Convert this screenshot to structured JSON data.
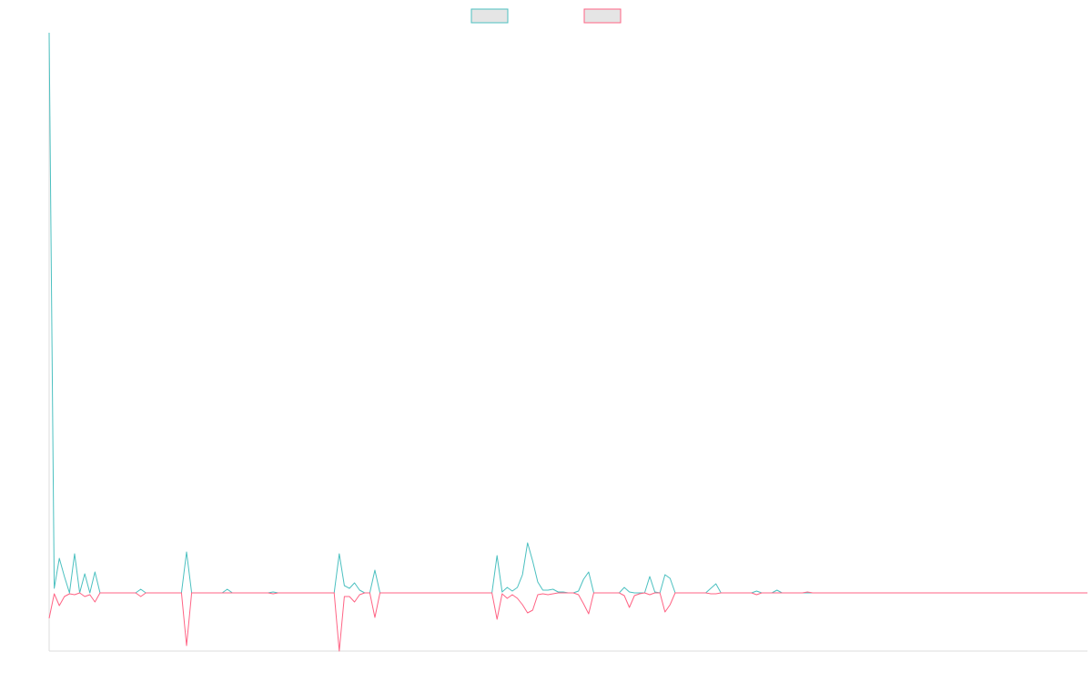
{
  "chart_data": {
    "type": "line",
    "categories": [
      null,
      null,
      null,
      null,
      null,
      null,
      null,
      null,
      null,
      null,
      null,
      null,
      null,
      null,
      null,
      null,
      null,
      null,
      null,
      null,
      null,
      null,
      null,
      null,
      null,
      null,
      null,
      null,
      null,
      null,
      null,
      null,
      null,
      null,
      null,
      null,
      null,
      null,
      null,
      null,
      null,
      null,
      null,
      null,
      null,
      null,
      null,
      null,
      null,
      null,
      null,
      null,
      null,
      null,
      null,
      null,
      null,
      null,
      null,
      null,
      null,
      null,
      null,
      null,
      null,
      null,
      null,
      null,
      null,
      null,
      null,
      null,
      null,
      null,
      null,
      null,
      null,
      null,
      null,
      null,
      null,
      null,
      null,
      null,
      null,
      null,
      null,
      null,
      null,
      null,
      null,
      null,
      null,
      null,
      null,
      null,
      null,
      null,
      null,
      null,
      null,
      null,
      null,
      null,
      null,
      null,
      null,
      null,
      null,
      null,
      null,
      null,
      null,
      null,
      null,
      null,
      null,
      null,
      null,
      null,
      null,
      null,
      null,
      null,
      null,
      null,
      null,
      null,
      null,
      null,
      null,
      null,
      null,
      null,
      null,
      null,
      null,
      null,
      null,
      null,
      null,
      null,
      null,
      null,
      null,
      null,
      null,
      null,
      null,
      null,
      null,
      null,
      null,
      null,
      null,
      null,
      null,
      null,
      null,
      null,
      null,
      null,
      null,
      null,
      null,
      null,
      null,
      null,
      null,
      null,
      null,
      null,
      null,
      null,
      null,
      null,
      null,
      null,
      null,
      null,
      null,
      null,
      null,
      null,
      null,
      null,
      null,
      null,
      null,
      null,
      null,
      null,
      null,
      null,
      null,
      null,
      null,
      null,
      null,
      null,
      null,
      null,
      null,
      null,
      null
    ],
    "series": [
      {
        "color": "#4bc0c0",
        "values": [
          61.6,
          0.5,
          3.8,
          1.8,
          0,
          4.3,
          0,
          2.1,
          0,
          2.3,
          0,
          0,
          0,
          0,
          0,
          0,
          0,
          0,
          0.4,
          0,
          0,
          0,
          0,
          0,
          0,
          0,
          0,
          4.5,
          0,
          0,
          0,
          0,
          0,
          0,
          0,
          0.4,
          0,
          0,
          0,
          0,
          0,
          0,
          0,
          0,
          0.1,
          0,
          0,
          0,
          0,
          0,
          0,
          0,
          0,
          0,
          0,
          0,
          0,
          4.3,
          0.8,
          0.5,
          1.1,
          0.3,
          0,
          0,
          2.5,
          0,
          0,
          0,
          0,
          0,
          0,
          0,
          0,
          0,
          0,
          0,
          0,
          0,
          0,
          0,
          0,
          0,
          0,
          0,
          0,
          0,
          0,
          0,
          4.1,
          0.1,
          0.6,
          0.2,
          0.6,
          2.0,
          5.5,
          3.5,
          1.2,
          0.3,
          0.3,
          0.4,
          0.1,
          0.1,
          0,
          0,
          0.2,
          1.5,
          2.3,
          0,
          0,
          0,
          0,
          0,
          0,
          0.6,
          0.1,
          0,
          0,
          0,
          1.8,
          0.1,
          0,
          2.0,
          1.6,
          0,
          0,
          0,
          0,
          0,
          0,
          0,
          0.5,
          1.0,
          0,
          0,
          0,
          0,
          0,
          0,
          0,
          0.2,
          0,
          0,
          0,
          0.3,
          0,
          0,
          0,
          0,
          0,
          0,
          0,
          0,
          0,
          0,
          0,
          0,
          0,
          0,
          0,
          0,
          0,
          0,
          0,
          0,
          0,
          0,
          0,
          0,
          0,
          0,
          0,
          0,
          0,
          0,
          0,
          0,
          0,
          0,
          0,
          0,
          0,
          0,
          0,
          0,
          0,
          0,
          0,
          0,
          0,
          0,
          0,
          0,
          0,
          0,
          0,
          0,
          0,
          0,
          0,
          0,
          0,
          0,
          0,
          0,
          0
        ]
      },
      {
        "color": "#ff6384",
        "values": [
          -2.8,
          -0.1,
          -1.4,
          -0.4,
          -0.1,
          -0.2,
          0,
          -0.4,
          -0.2,
          -1.0,
          0,
          0,
          0,
          0,
          0,
          0,
          0,
          0,
          -0.4,
          0,
          0,
          0,
          0,
          0,
          0,
          0,
          0,
          -5.8,
          0,
          0,
          0,
          0,
          0,
          0,
          0,
          0,
          0,
          0,
          0,
          0,
          0,
          0,
          0,
          0,
          -0.1,
          0,
          0,
          0,
          0,
          0,
          0,
          0,
          0,
          0,
          0,
          0,
          0,
          -6.4,
          -0.4,
          -0.4,
          -1.0,
          -0.2,
          0,
          0,
          -2.7,
          0,
          0,
          0,
          0,
          0,
          0,
          0,
          0,
          0,
          0,
          0,
          0,
          0,
          0,
          0,
          0,
          0,
          0,
          0,
          0,
          0,
          0,
          0,
          -2.9,
          -0.1,
          -0.6,
          -0.2,
          -0.6,
          -1.3,
          -2.2,
          -1.9,
          -0.2,
          -0.1,
          -0.2,
          -0.1,
          0,
          0,
          0,
          0,
          -0.2,
          -1.2,
          -2.3,
          0,
          0,
          0,
          0,
          0,
          0,
          -0.3,
          -1.6,
          -0.3,
          -0.1,
          0,
          -0.2,
          0,
          0,
          -2.1,
          -1.3,
          0,
          0,
          0,
          0,
          0,
          0,
          0,
          -0.1,
          -0.1,
          0,
          0,
          0,
          0,
          0,
          0,
          0,
          -0.2,
          0,
          0,
          0,
          0,
          0,
          0,
          0,
          0,
          0,
          0.1,
          0,
          0,
          0,
          0,
          0,
          0,
          0,
          0,
          0,
          0,
          0,
          0,
          0,
          0,
          0,
          0,
          0,
          0,
          0,
          0,
          0,
          0,
          0,
          0,
          0,
          0,
          0,
          0,
          0,
          0,
          0,
          0,
          0,
          0,
          0,
          0,
          0,
          0,
          0,
          0,
          0,
          0,
          0,
          0,
          0,
          0,
          0,
          0,
          0,
          0,
          0,
          0,
          0,
          0,
          0
        ]
      }
    ],
    "ylim": [
      -6.4,
      61.6
    ],
    "legend": "top"
  }
}
